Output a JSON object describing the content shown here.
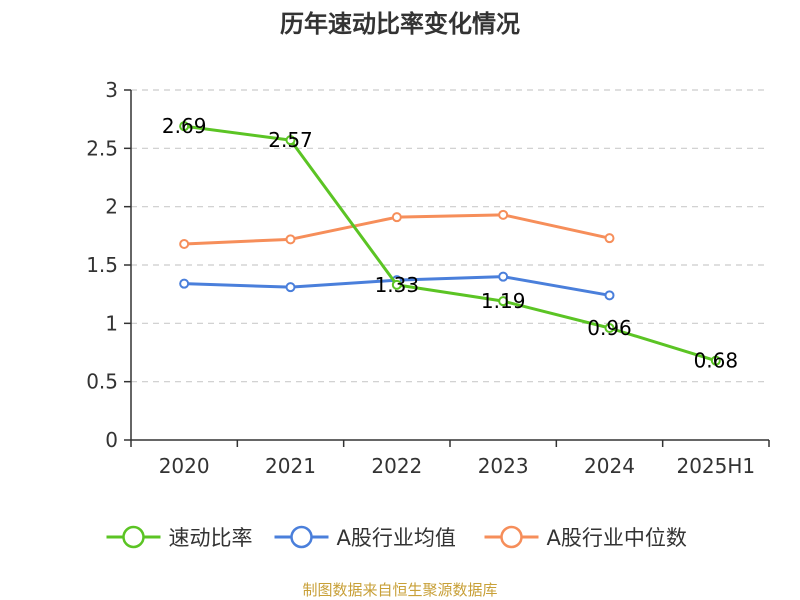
{
  "chart_data": {
    "type": "line",
    "title": "历年速动比率变化情况",
    "categories": [
      "2020",
      "2021",
      "2022",
      "2023",
      "2024",
      "2025H1"
    ],
    "ylim": [
      0,
      3
    ],
    "yticks": [
      "0",
      "0.5",
      "1",
      "1.5",
      "2",
      "2.5",
      "3"
    ],
    "ytick_values": [
      0,
      0.5,
      1,
      1.5,
      2,
      2.5,
      3
    ],
    "grid": true,
    "legend_position": "bottom",
    "series": [
      {
        "name": "速动比率",
        "color": "#5bc424",
        "values": [
          2.69,
          2.57,
          1.33,
          1.19,
          0.96,
          0.68
        ],
        "labels": [
          "2.69",
          "2.57",
          "1.33",
          "1.19",
          "0.96",
          "0.68"
        ]
      },
      {
        "name": "A股行业均值",
        "color": "#4a7fdb",
        "values": [
          1.34,
          1.31,
          1.37,
          1.4,
          1.24,
          null
        ]
      },
      {
        "name": "A股行业中位数",
        "color": "#f68e5a",
        "values": [
          1.68,
          1.72,
          1.91,
          1.93,
          1.73,
          null
        ]
      }
    ],
    "source": "制图数据来自恒生聚源数据库"
  }
}
